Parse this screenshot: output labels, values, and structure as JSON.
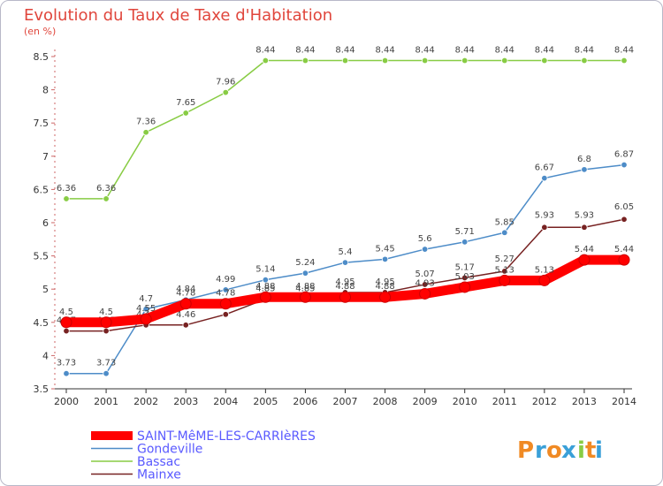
{
  "title": "Evolution du Taux de Taxe d'Habitation",
  "unit": "(en %)",
  "chart_data": {
    "type": "line",
    "x": [
      "2000",
      "2001",
      "2002",
      "2003",
      "2004",
      "2005",
      "2006",
      "2007",
      "2008",
      "2009",
      "2010",
      "2011",
      "2012",
      "2013",
      "2014"
    ],
    "ylim": [
      3.5,
      8.5
    ],
    "yticks": [
      "3.5",
      "4",
      "4.5",
      "5",
      "5.5",
      "6",
      "6.5",
      "7",
      "7.5",
      "8",
      "8.5"
    ],
    "legend_position": "bottom-left",
    "series": [
      {
        "name": "SAINT-MêME-LES-CARRIèRES",
        "color": "#ff0000",
        "values": [
          4.5,
          4.5,
          4.55,
          4.78,
          4.78,
          4.88,
          4.88,
          4.88,
          4.88,
          4.93,
          5.03,
          5.13,
          5.13,
          5.44,
          5.44
        ],
        "labels": [
          "4.5",
          "4.5",
          "4.55",
          "4.78",
          "4.78",
          "4.88",
          "4.88",
          "4.88",
          "4.88",
          "4.93",
          "5.03",
          "5.13",
          "5.13",
          "5.44",
          "5.44"
        ]
      },
      {
        "name": "Gondeville",
        "color": "#4d8cc8",
        "values": [
          3.73,
          3.73,
          4.7,
          4.84,
          4.99,
          5.14,
          5.24,
          5.4,
          5.45,
          5.6,
          5.71,
          5.85,
          6.67,
          6.8,
          6.87
        ],
        "labels": [
          "3.73",
          "3.73",
          "4.7",
          "4.84",
          "4.99",
          "5.14",
          "5.24",
          "5.4",
          "5.45",
          "5.6",
          "5.71",
          "5.85",
          "6.67",
          "6.8",
          "6.87"
        ]
      },
      {
        "name": "Bassac",
        "color": "#88cc44",
        "values": [
          6.36,
          6.36,
          7.36,
          7.65,
          7.96,
          8.44,
          8.44,
          8.44,
          8.44,
          8.44,
          8.44,
          8.44,
          8.44,
          8.44,
          8.44
        ],
        "labels": [
          "6.36",
          "6.36",
          "7.36",
          "7.65",
          "7.96",
          "8.44",
          "8.44",
          "8.44",
          "8.44",
          "8.44",
          "8.44",
          "8.44",
          "8.44",
          "8.44",
          "8.44"
        ]
      },
      {
        "name": "Mainxe",
        "color": "#772222",
        "values": [
          4.37,
          4.37,
          4.46,
          4.46,
          4.62,
          4.85,
          4.85,
          4.95,
          4.95,
          5.07,
          5.17,
          5.27,
          5.93,
          5.93,
          6.05
        ],
        "labels": [
          "4.37",
          "4.37",
          "4.46",
          "4.46",
          "4.62",
          "4.85",
          "4.85",
          "4.95",
          "4.95",
          "5.07",
          "5.17",
          "5.27",
          "5.93",
          "5.93",
          "6.05"
        ]
      }
    ]
  },
  "logo": {
    "letters": [
      "P",
      "r",
      "o",
      "x",
      "i",
      "t",
      "i"
    ],
    "colors": [
      "#f08a24",
      "#3aa0d8",
      "#f08a24",
      "#3aa0d8",
      "#88cc44",
      "#f08a24",
      "#3aa0d8"
    ]
  }
}
